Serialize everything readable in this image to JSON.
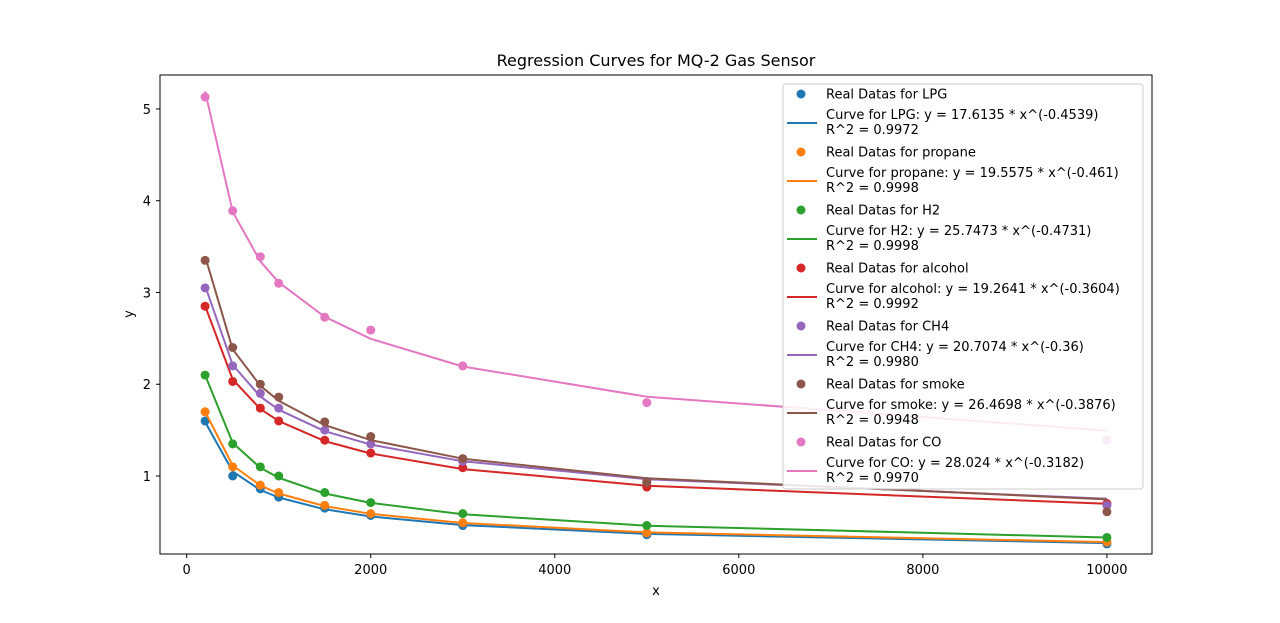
{
  "chart_data": {
    "type": "line",
    "title": "Regression Curves for MQ-2 Gas Sensor",
    "xlabel": "x",
    "ylabel": "y",
    "xlim": [
      -290,
      10490
    ],
    "ylim": [
      0.15,
      5.37
    ],
    "xticks": [
      0,
      2000,
      4000,
      6000,
      8000,
      10000
    ],
    "yticks": [
      1,
      2,
      3,
      4,
      5
    ],
    "legend_position": "upper right",
    "x": [
      200,
      500,
      800,
      1000,
      1500,
      2000,
      3000,
      5000,
      10000
    ],
    "series": [
      {
        "gas": "LPG",
        "color": "#1f77b4",
        "points_label": "Real Datas for LPG",
        "curve_label": "Curve for LPG: y = 17.6135 * x^(-0.4539)",
        "r2_label": "R^2 = 0.9972",
        "a": 17.6135,
        "b": -0.4539,
        "y": [
          1.6,
          1.0,
          0.86,
          0.77,
          0.65,
          0.57,
          0.46,
          0.36,
          0.26
        ]
      },
      {
        "gas": "propane",
        "color": "#ff7f0e",
        "points_label": "Real Datas for propane",
        "curve_label": "Curve for propane: y = 19.5575 * x^(-0.461)",
        "r2_label": "R^2 = 0.9998",
        "a": 19.5575,
        "b": -0.461,
        "y": [
          1.7,
          1.1,
          0.9,
          0.82,
          0.68,
          0.59,
          0.49,
          0.38,
          0.28
        ]
      },
      {
        "gas": "H2",
        "color": "#2ca02c",
        "points_label": "Real Datas for H2",
        "curve_label": "Curve for H2: y = 25.7473 * x^(-0.4731)",
        "r2_label": "R^2 = 0.9998",
        "a": 25.7473,
        "b": -0.4731,
        "y": [
          2.1,
          1.35,
          1.1,
          1.0,
          0.82,
          0.71,
          0.59,
          0.46,
          0.33
        ]
      },
      {
        "gas": "alcohol",
        "color": "#d62728",
        "points_label": "Real Datas for alcohol",
        "curve_label": "Curve for alcohol: y = 19.2641 * x^(-0.3604)",
        "r2_label": "R^2 = 0.9992",
        "a": 19.2641,
        "b": -0.3604,
        "y": [
          2.85,
          2.03,
          1.74,
          1.6,
          1.39,
          1.25,
          1.09,
          0.88,
          0.7
        ]
      },
      {
        "gas": "CH4",
        "color": "#9467bd",
        "points_label": "Real Datas for CH4",
        "curve_label": "Curve for CH4: y = 20.7074 * x^(-0.36)",
        "r2_label": "R^2 = 0.9980",
        "a": 20.7074,
        "b": -0.36,
        "y": [
          3.05,
          2.2,
          1.9,
          1.74,
          1.5,
          1.35,
          1.16,
          0.94,
          0.68
        ]
      },
      {
        "gas": "smoke",
        "color": "#8c564b",
        "points_label": "Real Datas for smoke",
        "curve_label": "Curve for smoke: y = 26.4698 * x^(-0.3876)",
        "r2_label": "R^2 = 0.9948",
        "a": 26.4698,
        "b": -0.3876,
        "y": [
          3.35,
          2.4,
          2.0,
          1.86,
          1.59,
          1.43,
          1.19,
          0.93,
          0.61
        ]
      },
      {
        "gas": "CO",
        "color": "#e377c2",
        "points_label": "Real Datas for CO",
        "curve_label": "Curve for CO: y = 28.024 * x^(-0.3182)",
        "r2_label": "R^2 = 0.9970",
        "a": 28.024,
        "b": -0.3182,
        "y": [
          5.13,
          3.89,
          3.39,
          3.1,
          2.73,
          2.59,
          2.2,
          1.8,
          1.39
        ]
      }
    ]
  }
}
